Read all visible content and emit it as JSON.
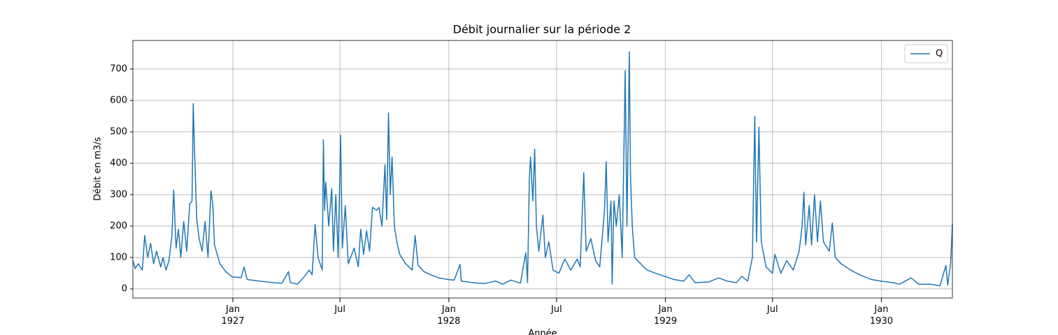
{
  "chart_data": {
    "type": "line",
    "title": "Débit journalier sur la période 2",
    "x_label": "Année",
    "y_label": "Débit en m3/s",
    "xlim": [
      "1926-07-16",
      "1930-05-01"
    ],
    "xticks": [
      {
        "value": "1927-01-01",
        "label": "Jan\n1927"
      },
      {
        "value": "1927-07-01",
        "label": "Jul"
      },
      {
        "value": "1928-01-01",
        "label": "Jan\n1928"
      },
      {
        "value": "1928-07-01",
        "label": "Jul"
      },
      {
        "value": "1929-01-01",
        "label": "Jan\n1929"
      },
      {
        "value": "1929-07-01",
        "label": "Jul"
      },
      {
        "value": "1930-01-01",
        "label": "Jan\n1930"
      }
    ],
    "ylim": [
      -29,
      791
    ],
    "yticks": [
      0,
      100,
      200,
      300,
      400,
      500,
      600,
      700
    ],
    "grid": true,
    "legend": "upper right",
    "x": [
      "1926-07-16",
      "1926-07-20",
      "1926-07-25",
      "1926-08-01",
      "1926-08-05",
      "1926-08-10",
      "1926-08-15",
      "1926-08-20",
      "1926-08-25",
      "1926-09-01",
      "1926-09-05",
      "1926-09-10",
      "1926-09-15",
      "1926-09-20",
      "1926-09-23",
      "1926-09-27",
      "1926-10-01",
      "1926-10-05",
      "1926-10-10",
      "1926-10-15",
      "1926-10-20",
      "1926-10-24",
      "1926-10-26",
      "1926-10-28",
      "1926-11-01",
      "1926-11-05",
      "1926-11-10",
      "1926-11-15",
      "1926-11-20",
      "1926-11-25",
      "1926-11-28",
      "1926-12-01",
      "1926-12-10",
      "1926-12-20",
      "1926-12-31",
      "1927-01-15",
      "1927-01-20",
      "1927-01-25",
      "1927-02-15",
      "1927-03-10",
      "1927-03-25",
      "1927-04-05",
      "1927-04-08",
      "1927-04-20",
      "1927-04-30",
      "1927-05-10",
      "1927-05-15",
      "1927-05-20",
      "1927-05-25",
      "1927-06-01",
      "1927-06-03",
      "1927-06-05",
      "1927-06-07",
      "1927-06-12",
      "1927-06-17",
      "1927-06-20",
      "1927-06-24",
      "1927-06-28",
      "1927-07-02",
      "1927-07-05",
      "1927-07-10",
      "1927-07-15",
      "1927-07-25",
      "1927-08-01",
      "1927-08-05",
      "1927-08-10",
      "1927-08-15",
      "1927-08-20",
      "1927-08-25",
      "1927-09-01",
      "1927-09-05",
      "1927-09-10",
      "1927-09-15",
      "1927-09-18",
      "1927-09-21",
      "1927-09-24",
      "1927-09-27",
      "1927-10-01",
      "1927-10-05",
      "1927-10-10",
      "1927-10-20",
      "1927-10-31",
      "1927-11-05",
      "1927-11-10",
      "1927-11-20",
      "1927-12-01",
      "1927-12-15",
      "1927-12-31",
      "1928-01-10",
      "1928-01-20",
      "1928-01-22",
      "1928-02-10",
      "1928-03-01",
      "1928-03-20",
      "1928-04-01",
      "1928-04-15",
      "1928-05-01",
      "1928-05-10",
      "1928-05-13",
      "1928-05-16",
      "1928-05-18",
      "1928-05-22",
      "1928-05-25",
      "1928-05-28",
      "1928-06-01",
      "1928-06-08",
      "1928-06-12",
      "1928-06-18",
      "1928-06-25",
      "1928-07-05",
      "1928-07-15",
      "1928-07-25",
      "1928-08-05",
      "1928-08-10",
      "1928-08-16",
      "1928-08-20",
      "1928-08-28",
      "1928-09-05",
      "1928-09-12",
      "1928-09-20",
      "1928-09-23",
      "1928-09-26",
      "1928-10-01",
      "1928-10-03",
      "1928-10-06",
      "1928-10-10",
      "1928-10-15",
      "1928-10-20",
      "1928-10-25",
      "1928-10-28",
      "1928-11-01",
      "1928-11-03",
      "1928-11-06",
      "1928-11-10",
      "1928-11-20",
      "1928-12-01",
      "1928-12-15",
      "1928-12-31",
      "1929-01-15",
      "1929-02-01",
      "1929-02-10",
      "1929-02-20",
      "1929-03-15",
      "1929-04-01",
      "1929-04-15",
      "1929-05-01",
      "1929-05-10",
      "1929-05-20",
      "1929-05-28",
      "1929-06-01",
      "1929-06-04",
      "1929-06-08",
      "1929-06-12",
      "1929-06-20",
      "1929-07-01",
      "1929-07-05",
      "1929-07-15",
      "1929-07-25",
      "1929-08-05",
      "1929-08-15",
      "1929-08-20",
      "1929-08-23",
      "1929-08-26",
      "1929-09-01",
      "1929-09-05",
      "1929-09-10",
      "1929-09-15",
      "1929-09-20",
      "1929-09-25",
      "1929-10-05",
      "1929-10-10",
      "1929-10-15",
      "1929-10-25",
      "1929-11-10",
      "1929-11-25",
      "1929-12-15",
      "1929-12-31",
      "1930-01-20",
      "1930-02-01",
      "1930-02-20",
      "1930-03-05",
      "1930-03-25",
      "1930-04-10",
      "1930-04-20",
      "1930-04-23",
      "1930-04-28",
      "1930-05-01"
    ],
    "series": [
      {
        "name": "Q",
        "color": "#1f77b4",
        "values": [
          90,
          65,
          80,
          60,
          170,
          100,
          145,
          80,
          120,
          70,
          100,
          60,
          90,
          170,
          315,
          130,
          190,
          100,
          215,
          120,
          270,
          280,
          590,
          450,
          220,
          160,
          120,
          215,
          100,
          312,
          270,
          140,
          80,
          55,
          38,
          36,
          70,
          30,
          25,
          20,
          18,
          55,
          20,
          15,
          35,
          60,
          45,
          205,
          100,
          60,
          475,
          250,
          340,
          200,
          320,
          120,
          300,
          100,
          490,
          130,
          265,
          80,
          130,
          70,
          190,
          110,
          185,
          120,
          260,
          250,
          260,
          200,
          395,
          220,
          560,
          300,
          420,
          200,
          150,
          110,
          80,
          60,
          170,
          75,
          55,
          45,
          35,
          30,
          28,
          78,
          25,
          20,
          17,
          25,
          15,
          28,
          18,
          115,
          20,
          350,
          420,
          280,
          445,
          200,
          120,
          235,
          100,
          150,
          60,
          50,
          95,
          60,
          95,
          70,
          370,
          120,
          160,
          90,
          70,
          250,
          405,
          150,
          280,
          15,
          280,
          200,
          300,
          100,
          695,
          200,
          755,
          360,
          200,
          100,
          80,
          60,
          50,
          40,
          30,
          25,
          45,
          20,
          22,
          35,
          25,
          20,
          40,
          25,
          100,
          550,
          150,
          515,
          150,
          70,
          50,
          110,
          50,
          90,
          60,
          120,
          200,
          308,
          140,
          265,
          140,
          300,
          150,
          280,
          150,
          120,
          210,
          100,
          80,
          60,
          45,
          30,
          25,
          20,
          15,
          35,
          15,
          15,
          10,
          75,
          12,
          80,
          205
        ]
      }
    ]
  }
}
